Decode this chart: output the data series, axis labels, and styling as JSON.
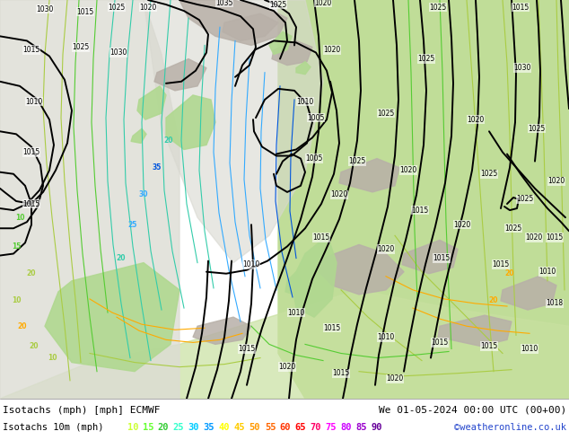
{
  "title_line1": "Isotachs (mph) [mph] ECMWF",
  "title_line2": "We 01-05-2024 00:00 UTC (00+00)",
  "legend_label": "Isotachs 10m (mph)",
  "watermark": "©weatheronline.co.uk",
  "isotach_values": [
    10,
    15,
    20,
    25,
    30,
    35,
    40,
    45,
    50,
    55,
    60,
    65,
    70,
    75,
    80,
    85,
    90
  ],
  "isotach_colors": [
    "#ccff33",
    "#66ff33",
    "#33cc33",
    "#33ffcc",
    "#00ccff",
    "#0099ff",
    "#ffff00",
    "#ffcc00",
    "#ff9900",
    "#ff6600",
    "#ff3300",
    "#ff0000",
    "#ff0066",
    "#ff00ff",
    "#cc00ff",
    "#9900cc",
    "#660099"
  ],
  "bg_ocean": "#e8e8e0",
  "bg_land_east": "#b8dba0",
  "bg_land_green": "#c8e8a8",
  "bg_gray": "#c0b8b0",
  "figure_bg": "#ffffff",
  "bottom_bar_color": "#e8e8e8",
  "isobar_color": "#000000",
  "isobar_lw": 1.4
}
